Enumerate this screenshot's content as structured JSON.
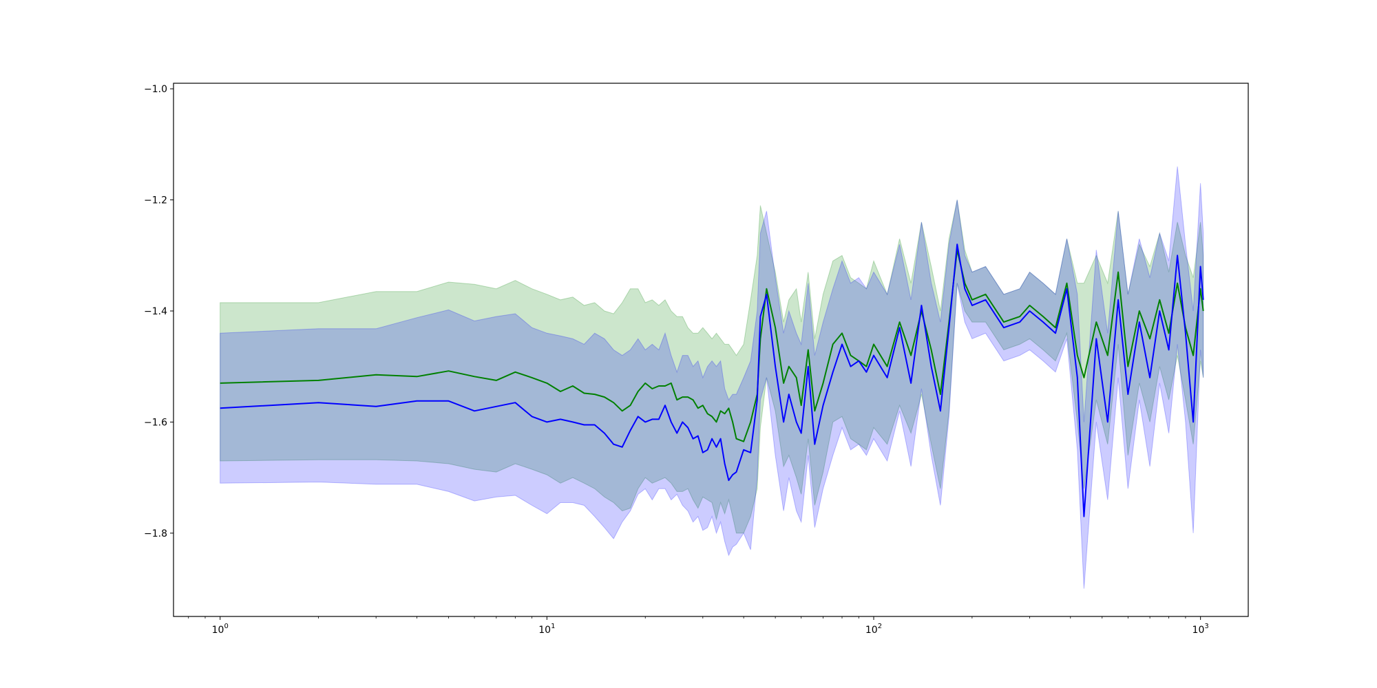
{
  "chart_data": {
    "type": "line",
    "title": "",
    "xlabel": "",
    "ylabel": "",
    "xscale": "log",
    "xlim": [
      0.72,
      1400
    ],
    "ylim": [
      -1.95,
      -0.99
    ],
    "grid": false,
    "legend": "none",
    "x_ticks": [
      {
        "value": 1,
        "base": "10",
        "exponent": "0"
      },
      {
        "value": 10,
        "base": "10",
        "exponent": "1"
      },
      {
        "value": 100,
        "base": "10",
        "exponent": "2"
      },
      {
        "value": 1000,
        "base": "10",
        "exponent": "3"
      }
    ],
    "y_ticks": [
      {
        "value": -1.0,
        "label": "−1.0"
      },
      {
        "value": -1.2,
        "label": "−1.2"
      },
      {
        "value": -1.4,
        "label": "−1.4"
      },
      {
        "value": -1.6,
        "label": "−1.6"
      },
      {
        "value": -1.8,
        "label": "−1.8"
      }
    ],
    "series": [
      {
        "color": "#008000",
        "band_color": "#008000",
        "band_opacity": 0.2,
        "x": [
          1,
          2,
          3,
          4,
          5,
          6,
          7,
          8,
          9,
          10,
          11,
          12,
          13,
          14,
          15,
          16,
          17,
          18,
          19,
          20,
          21,
          22,
          23,
          24,
          25,
          26,
          27,
          28,
          29,
          30,
          31,
          32,
          33,
          34,
          35,
          36,
          37,
          38,
          40,
          42,
          44,
          45,
          47,
          50,
          53,
          55,
          58,
          60,
          63,
          66,
          70,
          75,
          80,
          85,
          90,
          95,
          100,
          110,
          120,
          130,
          140,
          150,
          160,
          170,
          180,
          190,
          200,
          220,
          250,
          280,
          300,
          330,
          360,
          390,
          420,
          440,
          480,
          520,
          560,
          600,
          650,
          700,
          750,
          800,
          850,
          900,
          950,
          1000,
          1020
        ],
        "y": [
          -1.53,
          -1.525,
          -1.515,
          -1.518,
          -1.508,
          -1.518,
          -1.525,
          -1.51,
          -1.52,
          -1.53,
          -1.545,
          -1.535,
          -1.548,
          -1.55,
          -1.555,
          -1.565,
          -1.58,
          -1.57,
          -1.545,
          -1.53,
          -1.54,
          -1.535,
          -1.535,
          -1.53,
          -1.56,
          -1.555,
          -1.555,
          -1.56,
          -1.575,
          -1.57,
          -1.585,
          -1.59,
          -1.6,
          -1.58,
          -1.585,
          -1.575,
          -1.6,
          -1.63,
          -1.635,
          -1.6,
          -1.55,
          -1.45,
          -1.36,
          -1.43,
          -1.53,
          -1.5,
          -1.52,
          -1.57,
          -1.47,
          -1.58,
          -1.53,
          -1.46,
          -1.44,
          -1.48,
          -1.49,
          -1.5,
          -1.46,
          -1.5,
          -1.42,
          -1.48,
          -1.4,
          -1.47,
          -1.55,
          -1.42,
          -1.29,
          -1.35,
          -1.38,
          -1.37,
          -1.42,
          -1.41,
          -1.39,
          -1.41,
          -1.43,
          -1.35,
          -1.48,
          -1.52,
          -1.42,
          -1.48,
          -1.33,
          -1.5,
          -1.4,
          -1.45,
          -1.38,
          -1.44,
          -1.35,
          -1.43,
          -1.48,
          -1.36,
          -1.4
        ],
        "lower": [
          -1.67,
          -1.668,
          -1.668,
          -1.67,
          -1.675,
          -1.685,
          -1.69,
          -1.675,
          -1.685,
          -1.695,
          -1.71,
          -1.7,
          -1.71,
          -1.72,
          -1.735,
          -1.745,
          -1.76,
          -1.755,
          -1.72,
          -1.7,
          -1.71,
          -1.705,
          -1.7,
          -1.71,
          -1.725,
          -1.725,
          -1.72,
          -1.74,
          -1.755,
          -1.735,
          -1.74,
          -1.745,
          -1.775,
          -1.745,
          -1.765,
          -1.74,
          -1.77,
          -1.8,
          -1.8,
          -1.77,
          -1.72,
          -1.61,
          -1.52,
          -1.58,
          -1.68,
          -1.66,
          -1.7,
          -1.73,
          -1.63,
          -1.75,
          -1.69,
          -1.6,
          -1.59,
          -1.63,
          -1.64,
          -1.65,
          -1.61,
          -1.64,
          -1.57,
          -1.62,
          -1.55,
          -1.64,
          -1.72,
          -1.58,
          -1.35,
          -1.4,
          -1.42,
          -1.42,
          -1.47,
          -1.46,
          -1.45,
          -1.47,
          -1.49,
          -1.44,
          -1.6,
          -1.72,
          -1.56,
          -1.64,
          -1.46,
          -1.66,
          -1.53,
          -1.6,
          -1.5,
          -1.56,
          -1.48,
          -1.56,
          -1.64,
          -1.49,
          -1.52
        ],
        "upper": [
          -1.385,
          -1.385,
          -1.365,
          -1.365,
          -1.348,
          -1.352,
          -1.36,
          -1.345,
          -1.36,
          -1.37,
          -1.38,
          -1.375,
          -1.39,
          -1.385,
          -1.4,
          -1.405,
          -1.385,
          -1.36,
          -1.36,
          -1.385,
          -1.38,
          -1.39,
          -1.38,
          -1.4,
          -1.41,
          -1.41,
          -1.43,
          -1.44,
          -1.44,
          -1.43,
          -1.44,
          -1.45,
          -1.44,
          -1.45,
          -1.46,
          -1.46,
          -1.47,
          -1.48,
          -1.46,
          -1.38,
          -1.3,
          -1.21,
          -1.26,
          -1.33,
          -1.42,
          -1.38,
          -1.36,
          -1.42,
          -1.33,
          -1.45,
          -1.37,
          -1.31,
          -1.3,
          -1.34,
          -1.35,
          -1.36,
          -1.31,
          -1.37,
          -1.27,
          -1.35,
          -1.24,
          -1.32,
          -1.4,
          -1.27,
          -1.2,
          -1.29,
          -1.33,
          -1.32,
          -1.37,
          -1.36,
          -1.33,
          -1.35,
          -1.37,
          -1.27,
          -1.35,
          -1.35,
          -1.3,
          -1.35,
          -1.22,
          -1.37,
          -1.28,
          -1.32,
          -1.26,
          -1.33,
          -1.24,
          -1.3,
          -1.34,
          -1.24,
          -1.3
        ]
      },
      {
        "color": "#0000ff",
        "band_color": "#0000ff",
        "band_opacity": 0.2,
        "x": [
          1,
          2,
          3,
          4,
          5,
          6,
          7,
          8,
          9,
          10,
          11,
          12,
          13,
          14,
          15,
          16,
          17,
          18,
          19,
          20,
          21,
          22,
          23,
          24,
          25,
          26,
          27,
          28,
          29,
          30,
          31,
          32,
          33,
          34,
          35,
          36,
          37,
          38,
          40,
          42,
          44,
          45,
          47,
          50,
          53,
          55,
          58,
          60,
          63,
          66,
          70,
          75,
          80,
          85,
          90,
          95,
          100,
          110,
          120,
          130,
          140,
          150,
          160,
          170,
          180,
          190,
          200,
          220,
          250,
          280,
          300,
          330,
          360,
          390,
          420,
          440,
          480,
          520,
          560,
          600,
          650,
          700,
          750,
          800,
          850,
          900,
          950,
          1000,
          1020
        ],
        "y": [
          -1.575,
          -1.565,
          -1.572,
          -1.562,
          -1.562,
          -1.58,
          -1.572,
          -1.565,
          -1.59,
          -1.6,
          -1.595,
          -1.6,
          -1.605,
          -1.605,
          -1.62,
          -1.64,
          -1.645,
          -1.615,
          -1.59,
          -1.6,
          -1.595,
          -1.595,
          -1.57,
          -1.6,
          -1.62,
          -1.6,
          -1.61,
          -1.63,
          -1.625,
          -1.655,
          -1.65,
          -1.63,
          -1.645,
          -1.63,
          -1.675,
          -1.705,
          -1.695,
          -1.69,
          -1.65,
          -1.655,
          -1.56,
          -1.41,
          -1.37,
          -1.5,
          -1.6,
          -1.55,
          -1.6,
          -1.62,
          -1.5,
          -1.64,
          -1.57,
          -1.51,
          -1.46,
          -1.5,
          -1.49,
          -1.51,
          -1.48,
          -1.52,
          -1.43,
          -1.53,
          -1.39,
          -1.5,
          -1.58,
          -1.43,
          -1.28,
          -1.36,
          -1.39,
          -1.38,
          -1.43,
          -1.42,
          -1.4,
          -1.42,
          -1.44,
          -1.36,
          -1.52,
          -1.77,
          -1.45,
          -1.6,
          -1.38,
          -1.55,
          -1.42,
          -1.52,
          -1.4,
          -1.47,
          -1.3,
          -1.44,
          -1.6,
          -1.32,
          -1.38
        ],
        "lower": [
          -1.71,
          -1.708,
          -1.712,
          -1.712,
          -1.725,
          -1.742,
          -1.735,
          -1.732,
          -1.75,
          -1.765,
          -1.745,
          -1.745,
          -1.75,
          -1.77,
          -1.79,
          -1.81,
          -1.78,
          -1.76,
          -1.73,
          -1.72,
          -1.74,
          -1.72,
          -1.72,
          -1.74,
          -1.73,
          -1.75,
          -1.76,
          -1.78,
          -1.77,
          -1.795,
          -1.79,
          -1.77,
          -1.8,
          -1.78,
          -1.815,
          -1.84,
          -1.825,
          -1.82,
          -1.8,
          -1.83,
          -1.7,
          -1.56,
          -1.52,
          -1.66,
          -1.76,
          -1.7,
          -1.76,
          -1.78,
          -1.66,
          -1.79,
          -1.72,
          -1.66,
          -1.61,
          -1.65,
          -1.64,
          -1.66,
          -1.63,
          -1.67,
          -1.58,
          -1.68,
          -1.54,
          -1.66,
          -1.75,
          -1.59,
          -1.35,
          -1.42,
          -1.45,
          -1.44,
          -1.49,
          -1.48,
          -1.47,
          -1.49,
          -1.51,
          -1.45,
          -1.65,
          -1.9,
          -1.6,
          -1.74,
          -1.52,
          -1.72,
          -1.56,
          -1.68,
          -1.53,
          -1.62,
          -1.46,
          -1.6,
          -1.8,
          -1.47,
          -1.52
        ],
        "upper": [
          -1.44,
          -1.432,
          -1.432,
          -1.412,
          -1.398,
          -1.418,
          -1.41,
          -1.405,
          -1.43,
          -1.44,
          -1.445,
          -1.45,
          -1.46,
          -1.44,
          -1.45,
          -1.47,
          -1.48,
          -1.47,
          -1.45,
          -1.47,
          -1.46,
          -1.47,
          -1.44,
          -1.48,
          -1.51,
          -1.48,
          -1.48,
          -1.5,
          -1.49,
          -1.52,
          -1.5,
          -1.49,
          -1.5,
          -1.49,
          -1.54,
          -1.56,
          -1.55,
          -1.55,
          -1.52,
          -1.49,
          -1.4,
          -1.26,
          -1.22,
          -1.34,
          -1.44,
          -1.4,
          -1.44,
          -1.46,
          -1.35,
          -1.48,
          -1.42,
          -1.36,
          -1.31,
          -1.35,
          -1.34,
          -1.36,
          -1.33,
          -1.37,
          -1.28,
          -1.38,
          -1.24,
          -1.35,
          -1.42,
          -1.28,
          -1.2,
          -1.3,
          -1.33,
          -1.32,
          -1.37,
          -1.36,
          -1.33,
          -1.35,
          -1.37,
          -1.27,
          -1.37,
          -1.6,
          -1.29,
          -1.44,
          -1.22,
          -1.37,
          -1.27,
          -1.34,
          -1.26,
          -1.31,
          -1.14,
          -1.28,
          -1.4,
          -1.17,
          -1.26
        ]
      }
    ]
  }
}
